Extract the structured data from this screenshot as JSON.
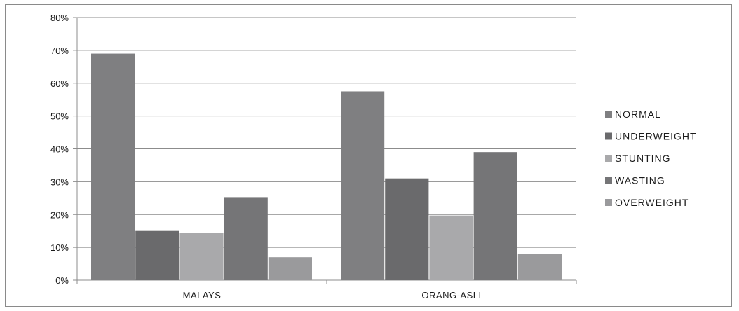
{
  "chart_data": {
    "type": "bar",
    "categories": [
      "MALAYS",
      "ORANG-ASLI"
    ],
    "series": [
      {
        "name": "NORMAL",
        "values": [
          69,
          57.5
        ],
        "color": "#7f7f81"
      },
      {
        "name": "UNDERWEIGHT",
        "values": [
          15,
          31
        ],
        "color": "#6a6a6c"
      },
      {
        "name": "STUNTING",
        "values": [
          14.3,
          19.7
        ],
        "color": "#a9a9ab"
      },
      {
        "name": "WASTING",
        "values": [
          25.3,
          39
        ],
        "color": "#757577"
      },
      {
        "name": "OVERWEIGHT",
        "values": [
          7,
          8
        ],
        "color": "#9a9a9c"
      }
    ],
    "yticks": [
      "0%",
      "10%",
      "20%",
      "30%",
      "40%",
      "50%",
      "60%",
      "70%",
      "80%"
    ],
    "ylim": [
      0,
      80
    ],
    "grid": true,
    "legend_position": "right",
    "title": "",
    "xlabel": "",
    "ylabel": ""
  }
}
